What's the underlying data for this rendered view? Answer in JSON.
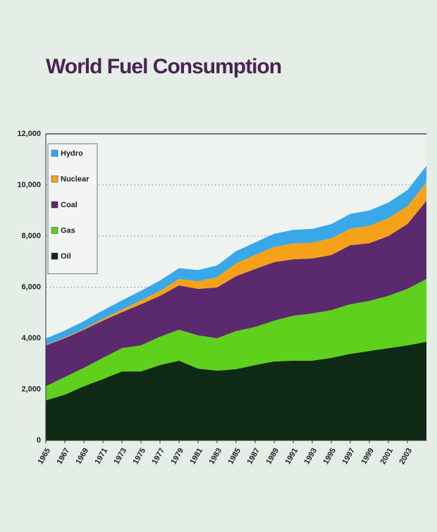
{
  "chart_data": {
    "type": "stacked-area",
    "title": "World Fuel Consumption",
    "x": [
      1965,
      1967,
      1969,
      1971,
      1973,
      1975,
      1977,
      1979,
      1981,
      1983,
      1985,
      1987,
      1989,
      1991,
      1993,
      1995,
      1997,
      1999,
      2001,
      2003,
      2005
    ],
    "xlim": [
      1965,
      2005
    ],
    "xticks": [
      1965,
      1967,
      1969,
      1971,
      1973,
      1975,
      1977,
      1979,
      1981,
      1983,
      1985,
      1987,
      1989,
      1991,
      1993,
      1995,
      1997,
      1999,
      2001,
      2003
    ],
    "ylim": [
      0,
      12000
    ],
    "yticks": [
      0,
      {
        "value": 2000,
        "label": "2,000"
      },
      {
        "value": 4000,
        "label": "4,000"
      },
      {
        "value": 6000,
        "label": "6,000"
      },
      {
        "value": 8000,
        "label": "8,000"
      },
      {
        "value": 10000,
        "label": "10,000"
      },
      {
        "value": 12000,
        "label": "12,000"
      }
    ],
    "grid": true,
    "legend": "top-left",
    "series": [
      {
        "name": "Oil",
        "color": "#0e2a14",
        "values": [
          1570,
          1790,
          2120,
          2400,
          2700,
          2700,
          2950,
          3120,
          2810,
          2730,
          2790,
          2950,
          3090,
          3120,
          3120,
          3230,
          3390,
          3500,
          3610,
          3720,
          3860
        ]
      },
      {
        "name": "Gas",
        "color": "#5fd01c",
        "values": [
          550,
          690,
          720,
          830,
          910,
          1020,
          1110,
          1210,
          1300,
          1270,
          1490,
          1490,
          1600,
          1760,
          1850,
          1870,
          1940,
          1960,
          2050,
          2210,
          2460
        ]
      },
      {
        "name": "Coal",
        "color": "#5b2a6e",
        "values": [
          1600,
          1520,
          1490,
          1460,
          1410,
          1610,
          1600,
          1740,
          1820,
          1990,
          2150,
          2270,
          2290,
          2210,
          2150,
          2160,
          2310,
          2260,
          2340,
          2540,
          3060
        ]
      },
      {
        "name": "Nuclear",
        "color": "#f5a21a",
        "values": [
          20,
          30,
          40,
          70,
          100,
          150,
          200,
          250,
          300,
          400,
          500,
          550,
          600,
          620,
          620,
          650,
          650,
          680,
          700,
          700,
          720
        ]
      },
      {
        "name": "Hydro",
        "color": "#38a8e8",
        "values": [
          250,
          270,
          300,
          330,
          360,
          380,
          400,
          420,
          440,
          460,
          480,
          490,
          510,
          530,
          540,
          560,
          580,
          600,
          610,
          630,
          650
        ]
      }
    ]
  }
}
